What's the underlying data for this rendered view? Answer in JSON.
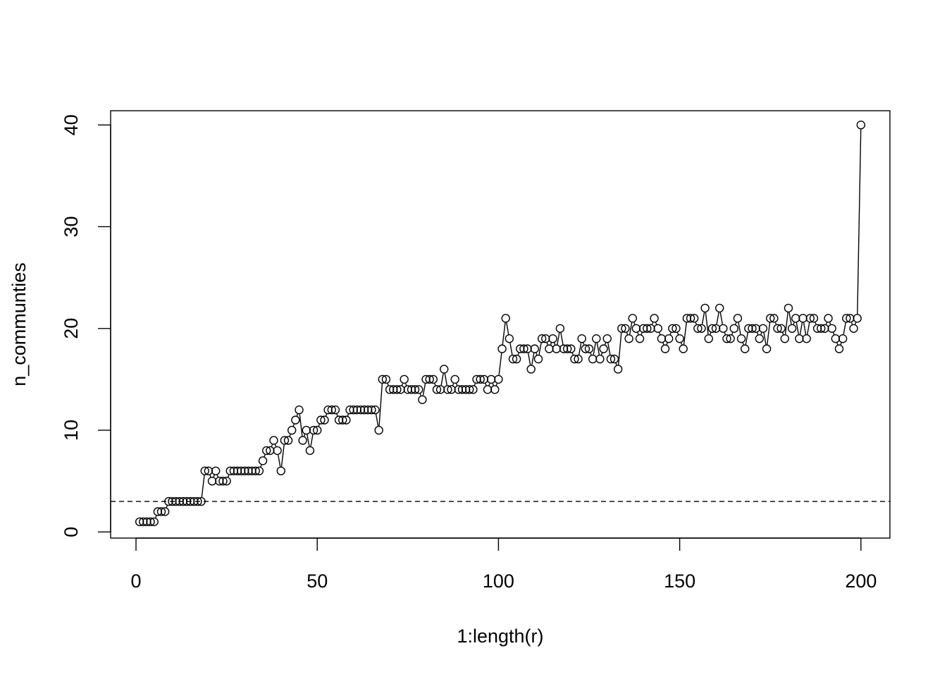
{
  "chart_data": {
    "type": "line",
    "title": "",
    "xlabel": "1:length(r)",
    "ylabel": "n_communties",
    "xlim": [
      -7,
      208
    ],
    "ylim": [
      -0.6,
      41.4
    ],
    "x_ticks": [
      0,
      50,
      100,
      150,
      200
    ],
    "x_tick_labels": [
      "0",
      "50",
      "100",
      "150",
      "200"
    ],
    "y_ticks": [
      0,
      10,
      20,
      30,
      40
    ],
    "y_tick_labels": [
      "0",
      "10",
      "20",
      "30",
      "40"
    ],
    "grid": false,
    "marker": "open-circle",
    "line_style": "solid",
    "reference_line": {
      "y": 3,
      "style": "dashed"
    },
    "series": [
      {
        "values": [
          1,
          1,
          1,
          1,
          1,
          2,
          2,
          2,
          3,
          3,
          3,
          3,
          3,
          3,
          3,
          3,
          3,
          3,
          6,
          6,
          5,
          6,
          5,
          5,
          5,
          6,
          6,
          6,
          6,
          6,
          6,
          6,
          6,
          6,
          7,
          8,
          8,
          9,
          8,
          6,
          9,
          9,
          10,
          11,
          12,
          9,
          10,
          8,
          10,
          10,
          11,
          11,
          12,
          12,
          12,
          11,
          11,
          11,
          12,
          12,
          12,
          12,
          12,
          12,
          12,
          12,
          10,
          15,
          15,
          14,
          14,
          14,
          14,
          15,
          14,
          14,
          14,
          14,
          13,
          15,
          15,
          15,
          14,
          14,
          16,
          14,
          14,
          15,
          14,
          14,
          14,
          14,
          14,
          15,
          15,
          15,
          14,
          15,
          14,
          15,
          18,
          21,
          19,
          17,
          17,
          18,
          18,
          18,
          16,
          18,
          17,
          19,
          19,
          18,
          19,
          18,
          20,
          18,
          18,
          18,
          17,
          17,
          19,
          18,
          18,
          17,
          19,
          17,
          18,
          19,
          17,
          17,
          16,
          20,
          20,
          19,
          21,
          20,
          19,
          20,
          20,
          20,
          21,
          20,
          19,
          18,
          19,
          20,
          20,
          19,
          18,
          21,
          21,
          21,
          20,
          20,
          22,
          19,
          20,
          20,
          22,
          20,
          19,
          19,
          20,
          21,
          19,
          18,
          20,
          20,
          20,
          19,
          20,
          18,
          21,
          21,
          20,
          20,
          19,
          22,
          20,
          21,
          19,
          21,
          19,
          21,
          21,
          20,
          20,
          20,
          21,
          20,
          19,
          18,
          19,
          21,
          21,
          20,
          21,
          40
        ]
      }
    ]
  },
  "colors": {
    "background": "#ffffff",
    "foreground": "#000000"
  }
}
